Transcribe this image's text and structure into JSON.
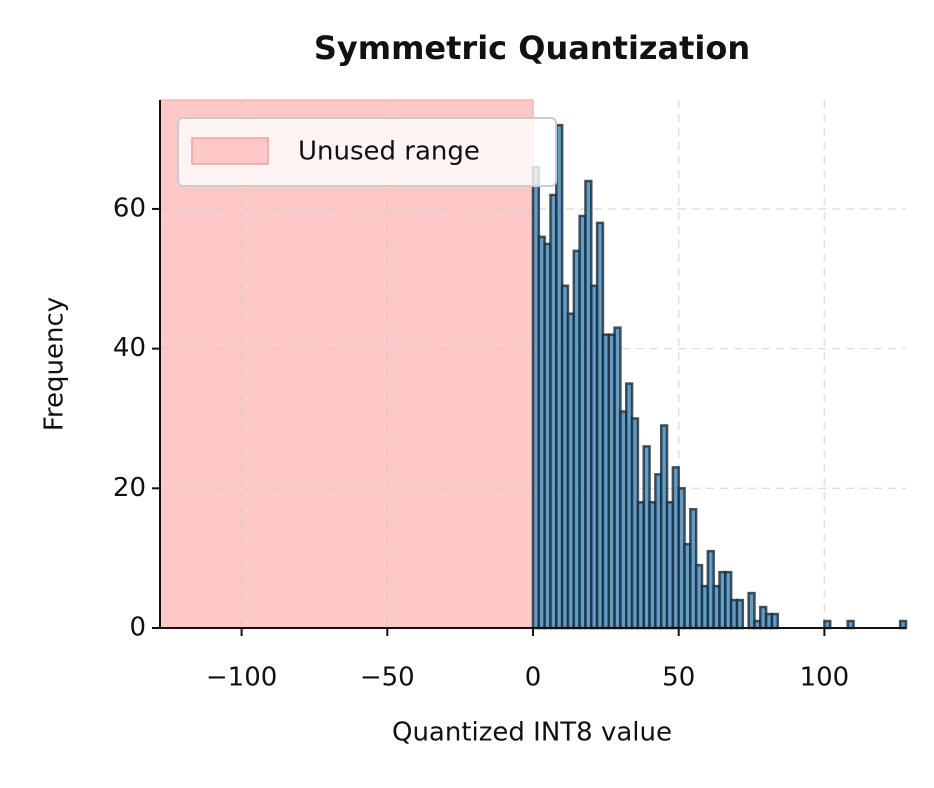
{
  "chart_data": {
    "type": "histogram",
    "title": "Symmetric Quantization",
    "x_label": "Quantized INT8 value",
    "y_label": "Frequency",
    "bins": [
      0,
      2,
      4,
      6,
      8,
      10,
      12,
      14,
      16,
      18,
      20,
      22,
      24,
      26,
      28,
      30,
      32,
      34,
      36,
      38,
      40,
      42,
      44,
      46,
      48,
      50,
      52,
      54,
      56,
      58,
      60,
      62,
      64,
      66,
      68,
      70,
      72,
      74,
      76,
      78,
      80,
      82,
      84,
      86,
      88,
      90,
      92,
      94,
      96,
      98,
      100,
      102,
      104,
      106,
      108,
      110,
      112,
      114,
      116,
      118,
      120,
      122,
      124,
      126,
      128
    ],
    "counts": [
      66,
      56,
      55,
      62,
      72,
      49,
      45,
      54,
      59,
      64,
      49,
      58,
      42,
      42,
      43,
      31,
      35,
      30,
      18,
      26,
      18,
      22,
      29,
      18,
      23,
      20,
      12,
      17,
      9,
      6,
      11,
      6,
      8,
      8,
      4,
      4,
      0,
      5,
      1,
      3,
      2,
      2,
      0,
      0,
      0,
      0,
      0,
      0,
      0,
      0,
      1,
      0,
      0,
      0,
      1,
      0,
      0,
      0,
      0,
      0,
      0,
      0,
      0,
      1
    ],
    "color": "#4d94c8",
    "edge_color": "#1f2a33",
    "span": {
      "x": [
        -128,
        0
      ],
      "label": "Unused range",
      "color": "#ffc8c8"
    },
    "xlim": [
      -128,
      128
    ],
    "ylim": [
      0,
      75.6
    ],
    "xticks": [
      {
        "value": -100,
        "label": "−100"
      },
      {
        "value": -50,
        "label": "−50"
      },
      0,
      50,
      100
    ],
    "yticks": [
      0,
      20,
      40,
      60
    ],
    "grid": true,
    "legend": "upper left"
  }
}
